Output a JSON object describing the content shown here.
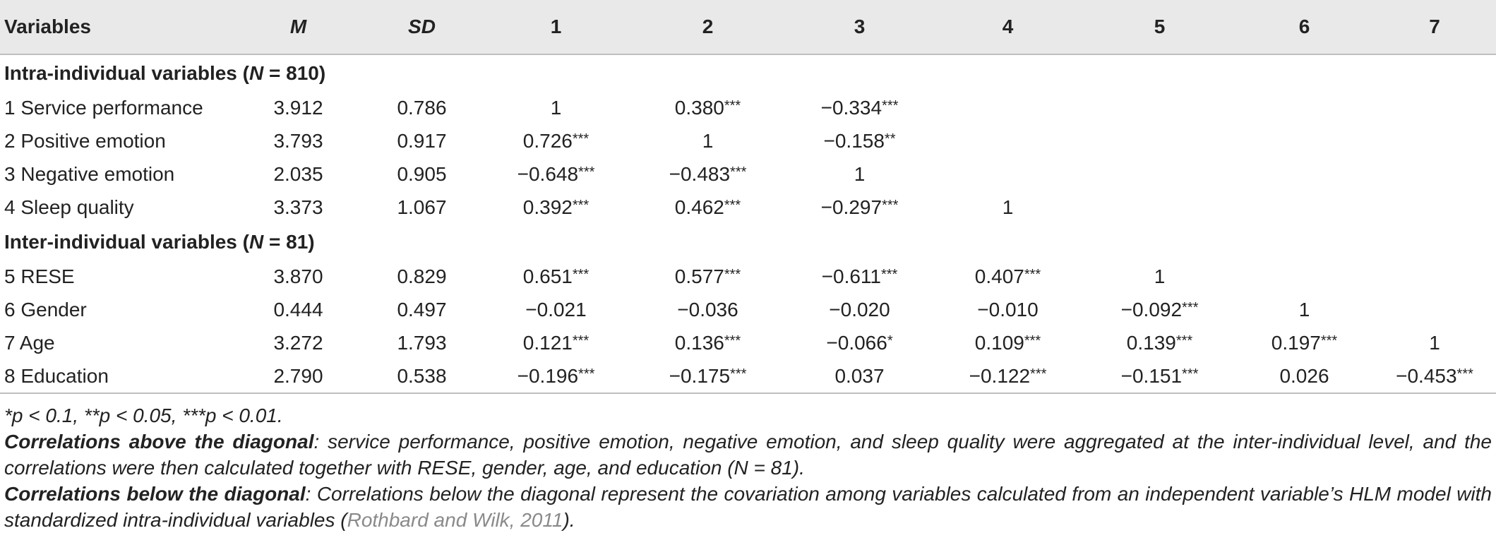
{
  "columns": {
    "variables": "Variables",
    "m": "M",
    "sd": "SD",
    "c1": "1",
    "c2": "2",
    "c3": "3",
    "c4": "4",
    "c5": "5",
    "c6": "6",
    "c7": "7"
  },
  "sections": {
    "intra_prefix": "Intra-individual variables (",
    "intra_n": "N",
    "intra_suffix": " = 810)",
    "inter_prefix": "Inter-individual variables (",
    "inter_n": "N",
    "inter_suffix": " = 81)"
  },
  "rows": [
    {
      "label": "1 Service performance",
      "m": "3.912",
      "sd": "0.786",
      "c1": "1",
      "c2": "0.380***",
      "c3": "−0.334***",
      "c4": "",
      "c5": "",
      "c6": "",
      "c7": ""
    },
    {
      "label": "2 Positive emotion",
      "m": "3.793",
      "sd": "0.917",
      "c1": "0.726***",
      "c2": "1",
      "c3": "−0.158**",
      "c4": "",
      "c5": "",
      "c6": "",
      "c7": ""
    },
    {
      "label": "3 Negative emotion",
      "m": "2.035",
      "sd": "0.905",
      "c1": "−0.648***",
      "c2": "−0.483***",
      "c3": "1",
      "c4": "",
      "c5": "",
      "c6": "",
      "c7": ""
    },
    {
      "label": "4 Sleep quality",
      "m": "3.373",
      "sd": "1.067",
      "c1": "0.392***",
      "c2": "0.462***",
      "c3": "−0.297***",
      "c4": "1",
      "c5": "",
      "c6": "",
      "c7": ""
    },
    {
      "label": "5 RESE",
      "m": "3.870",
      "sd": "0.829",
      "c1": "0.651***",
      "c2": "0.577***",
      "c3": "−0.611***",
      "c4": "0.407***",
      "c5": "1",
      "c6": "",
      "c7": ""
    },
    {
      "label": "6 Gender",
      "m": "0.444",
      "sd": "0.497",
      "c1": "−0.021",
      "c2": "−0.036",
      "c3": "−0.020",
      "c4": "−0.010",
      "c5": "−0.092***",
      "c6": "1",
      "c7": ""
    },
    {
      "label": "7 Age",
      "m": "3.272",
      "sd": "1.793",
      "c1": "0.121***",
      "c2": "0.136***",
      "c3": "−0.066*",
      "c4": "0.109***",
      "c5": "0.139***",
      "c6": "0.197***",
      "c7": "1"
    },
    {
      "label": "8 Education",
      "m": "2.790",
      "sd": "0.538",
      "c1": "−0.196***",
      "c2": "−0.175***",
      "c3": "0.037",
      "c4": "−0.122***",
      "c5": "−0.151***",
      "c6": "0.026",
      "c7": "−0.453***"
    }
  ],
  "notes": {
    "significance": "*p < 0.1, **p < 0.05, ***p < 0.01.",
    "above_title": "Correlations above the diagonal",
    "above_text": ": service performance, positive emotion, negative emotion, and sleep quality were aggregated at the inter-individual level, and the correlations were then calculated together with RESE, gender, age, and education (N = 81).",
    "below_title": "Correlations below the diagonal",
    "below_text": ": Correlations below the diagonal represent the covariation among variables calculated from an independent variable’s HLM model with standardized intra-individual variables (",
    "below_ref": "Rothbard and Wilk, 2011",
    "below_end": ")."
  }
}
